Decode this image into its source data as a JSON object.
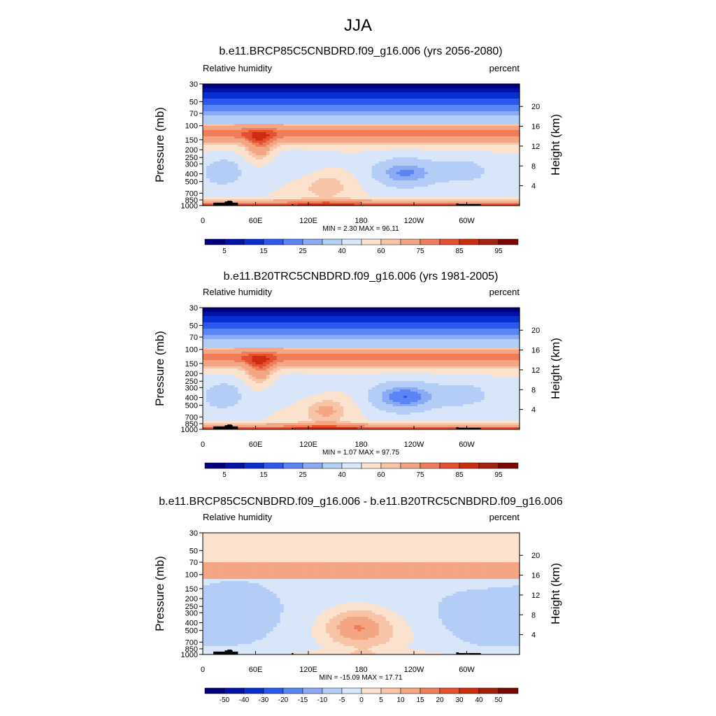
{
  "title": "JJA",
  "colors": {
    "abs_palette": [
      "#00007f",
      "#0013a6",
      "#0a2fd0",
      "#2b58ee",
      "#5b84f5",
      "#8aaaf4",
      "#b4cdf6",
      "#d9e6f9",
      "#fbe2cf",
      "#f8c4a8",
      "#f4a583",
      "#ef7d5a",
      "#e5502f",
      "#cc2d0f",
      "#a4200a",
      "#7a0703"
    ],
    "diff_palette": [
      "#00007f",
      "#0013a6",
      "#0a2fd0",
      "#2b58ee",
      "#5b84f5",
      "#8aaaf4",
      "#b4cdf6",
      "#d9e6f9",
      "#fbe2cf",
      "#f8c4a8",
      "#f4a583",
      "#ef7d5a",
      "#e5502f",
      "#cc2d0f",
      "#a4200a",
      "#7a0703"
    ],
    "stratosphere_top": "#1a3cdc",
    "terrain": "#000000"
  },
  "chart_data": [
    {
      "type": "heatmap",
      "panel_title": "b.e11.BRCP85C5CNBDRD.f09_g16.006 (yrs 2056-2080)",
      "left_label": "Relative humidity",
      "right_label": "percent",
      "ylabel": "Pressure (mb)",
      "ylabel_right": "Height (km)",
      "x_ticks": [
        "0",
        "60E",
        "120E",
        "180",
        "120W",
        "60W"
      ],
      "x_tick_values": [
        0,
        60,
        120,
        180,
        240,
        300
      ],
      "xlim": [
        0,
        360
      ],
      "y_ticks": [
        "30",
        "50",
        "70",
        "100",
        "150",
        "200",
        "250",
        "300",
        "400",
        "500",
        "700",
        "850",
        "1000"
      ],
      "y_tick_values": [
        30,
        50,
        70,
        100,
        150,
        200,
        250,
        300,
        400,
        500,
        700,
        850,
        1000
      ],
      "ylim": [
        1000,
        30
      ],
      "height_ticks": [
        "20",
        "16",
        "12",
        "8",
        "4"
      ],
      "height_tick_values": [
        20,
        16,
        12,
        8,
        4
      ],
      "stats": "MIN =   2.30  MAX =  96.11",
      "colorbar_labels": [
        "5",
        "15",
        "25",
        "40",
        "60",
        "75",
        "85",
        "95"
      ],
      "colorbar_label_index": [
        1,
        3,
        5,
        7,
        9,
        11,
        13,
        15
      ],
      "field": "rcp85"
    },
    {
      "type": "heatmap",
      "panel_title": "b.e11.B20TRC5CNBDRD.f09_g16.006 (yrs 1981-2005)",
      "left_label": "Relative humidity",
      "right_label": "percent",
      "ylabel": "Pressure (mb)",
      "ylabel_right": "Height (km)",
      "x_ticks": [
        "0",
        "60E",
        "120E",
        "180",
        "120W",
        "60W"
      ],
      "x_tick_values": [
        0,
        60,
        120,
        180,
        240,
        300
      ],
      "xlim": [
        0,
        360
      ],
      "y_ticks": [
        "30",
        "50",
        "70",
        "100",
        "150",
        "200",
        "250",
        "300",
        "400",
        "500",
        "700",
        "850",
        "1000"
      ],
      "y_tick_values": [
        30,
        50,
        70,
        100,
        150,
        200,
        250,
        300,
        400,
        500,
        700,
        850,
        1000
      ],
      "ylim": [
        1000,
        30
      ],
      "height_ticks": [
        "20",
        "16",
        "12",
        "8",
        "4"
      ],
      "height_tick_values": [
        20,
        16,
        12,
        8,
        4
      ],
      "stats": "MIN =   1.07  MAX =  97.75",
      "colorbar_labels": [
        "5",
        "15",
        "25",
        "40",
        "60",
        "75",
        "85",
        "95"
      ],
      "colorbar_label_index": [
        1,
        3,
        5,
        7,
        9,
        11,
        13,
        15
      ],
      "field": "hist"
    },
    {
      "type": "heatmap",
      "panel_title": "b.e11.BRCP85C5CNBDRD.f09_g16.006 - b.e11.B20TRC5CNBDRD.f09_g16.006",
      "left_label": "Relative humidity",
      "right_label": "percent",
      "ylabel": "Pressure (mb)",
      "ylabel_right": "Height (km)",
      "x_ticks": [
        "0",
        "60E",
        "120E",
        "180",
        "120W",
        "60W"
      ],
      "x_tick_values": [
        0,
        60,
        120,
        180,
        240,
        300
      ],
      "xlim": [
        0,
        360
      ],
      "y_ticks": [
        "30",
        "50",
        "70",
        "100",
        "150",
        "200",
        "250",
        "300",
        "400",
        "500",
        "700",
        "850",
        "1000"
      ],
      "y_tick_values": [
        30,
        50,
        70,
        100,
        150,
        200,
        250,
        300,
        400,
        500,
        700,
        850,
        1000
      ],
      "ylim": [
        1000,
        30
      ],
      "height_ticks": [
        "20",
        "16",
        "12",
        "8",
        "4"
      ],
      "height_tick_values": [
        20,
        16,
        12,
        8,
        4
      ],
      "stats": "MIN = -15.09  MAX =  17.71",
      "colorbar_labels": [
        "-50",
        "-40",
        "-30",
        "-20",
        "-15",
        "-10",
        "-5",
        "0",
        "5",
        "10",
        "15",
        "20",
        "30",
        "40",
        "50"
      ],
      "colorbar_label_index": [
        1,
        2,
        3,
        4,
        5,
        6,
        7,
        8,
        9,
        10,
        11,
        12,
        13,
        14,
        15
      ],
      "field": "diff"
    }
  ]
}
